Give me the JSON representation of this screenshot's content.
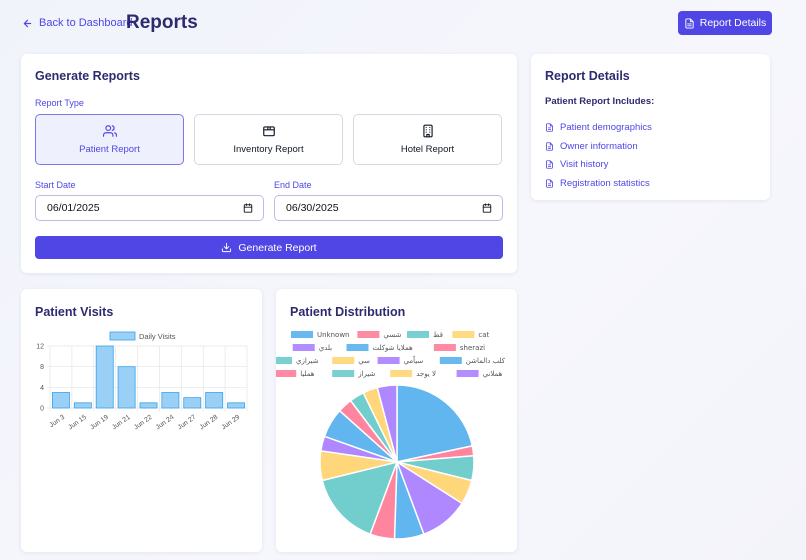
{
  "header": {
    "back_label": "Back to Dashboard",
    "title": "Reports",
    "details_button": "Report Details"
  },
  "generate": {
    "title": "Generate Reports",
    "type_label": "Report Type",
    "types": [
      {
        "label": "Patient Report",
        "icon": "users-icon",
        "active": true
      },
      {
        "label": "Inventory Report",
        "icon": "box-icon",
        "active": false
      },
      {
        "label": "Hotel Report",
        "icon": "building-icon",
        "active": false
      }
    ],
    "start_label": "Start Date",
    "start_value": "06/01/2025",
    "end_label": "End Date",
    "end_value": "06/30/2025",
    "button": "Generate Report"
  },
  "details": {
    "title": "Report Details",
    "subtitle": "Patient Report Includes:",
    "items": [
      "Patient demographics",
      "Owner information",
      "Visit history",
      "Registration statistics"
    ]
  },
  "colors": {
    "accent": "#4f46e5",
    "title": "#2e2a6e"
  },
  "chart_data": [
    {
      "type": "bar",
      "title": "Patient Visits",
      "categories": [
        "Jun 3",
        "Jun 15",
        "Jun 19",
        "Jun 21",
        "Jun 22",
        "Jun 24",
        "Jun 27",
        "Jun 28",
        "Jun 29"
      ],
      "series": [
        {
          "name": "Daily Visits",
          "values": [
            3,
            1,
            12,
            8,
            1,
            3,
            2,
            3,
            1
          ],
          "color": "#9ad0f5"
        }
      ],
      "yticks": [
        0,
        4,
        8,
        12
      ],
      "ylim": [
        0,
        12
      ],
      "grid": true,
      "legend": "top"
    },
    {
      "type": "pie",
      "title": "Patient Distribution",
      "legend": "top",
      "labels": [
        "Unknown",
        "شسي",
        "قط",
        "cat",
        "بلدي",
        "هملايا شوكلت",
        "sherazi",
        "شيرازي",
        "سي",
        "سياًمي",
        "كلب دالماشن",
        "همليا",
        "شيراز",
        "لا يوجد",
        "هملاني"
      ],
      "colors": [
        "#36a2eb",
        "#ff6384",
        "#4bc0c0",
        "#ffcd56",
        "#9966ff",
        "#36a2eb",
        "#ff6384",
        "#4bc0c0",
        "#ffcd56",
        "#9966ff",
        "#36a2eb",
        "#ff6384",
        "#4bc0c0",
        "#ffcd56",
        "#9966ff"
      ],
      "values": [
        21,
        2,
        5,
        5,
        10,
        6,
        5,
        15,
        6,
        3,
        6,
        3,
        3,
        3,
        4
      ]
    }
  ]
}
